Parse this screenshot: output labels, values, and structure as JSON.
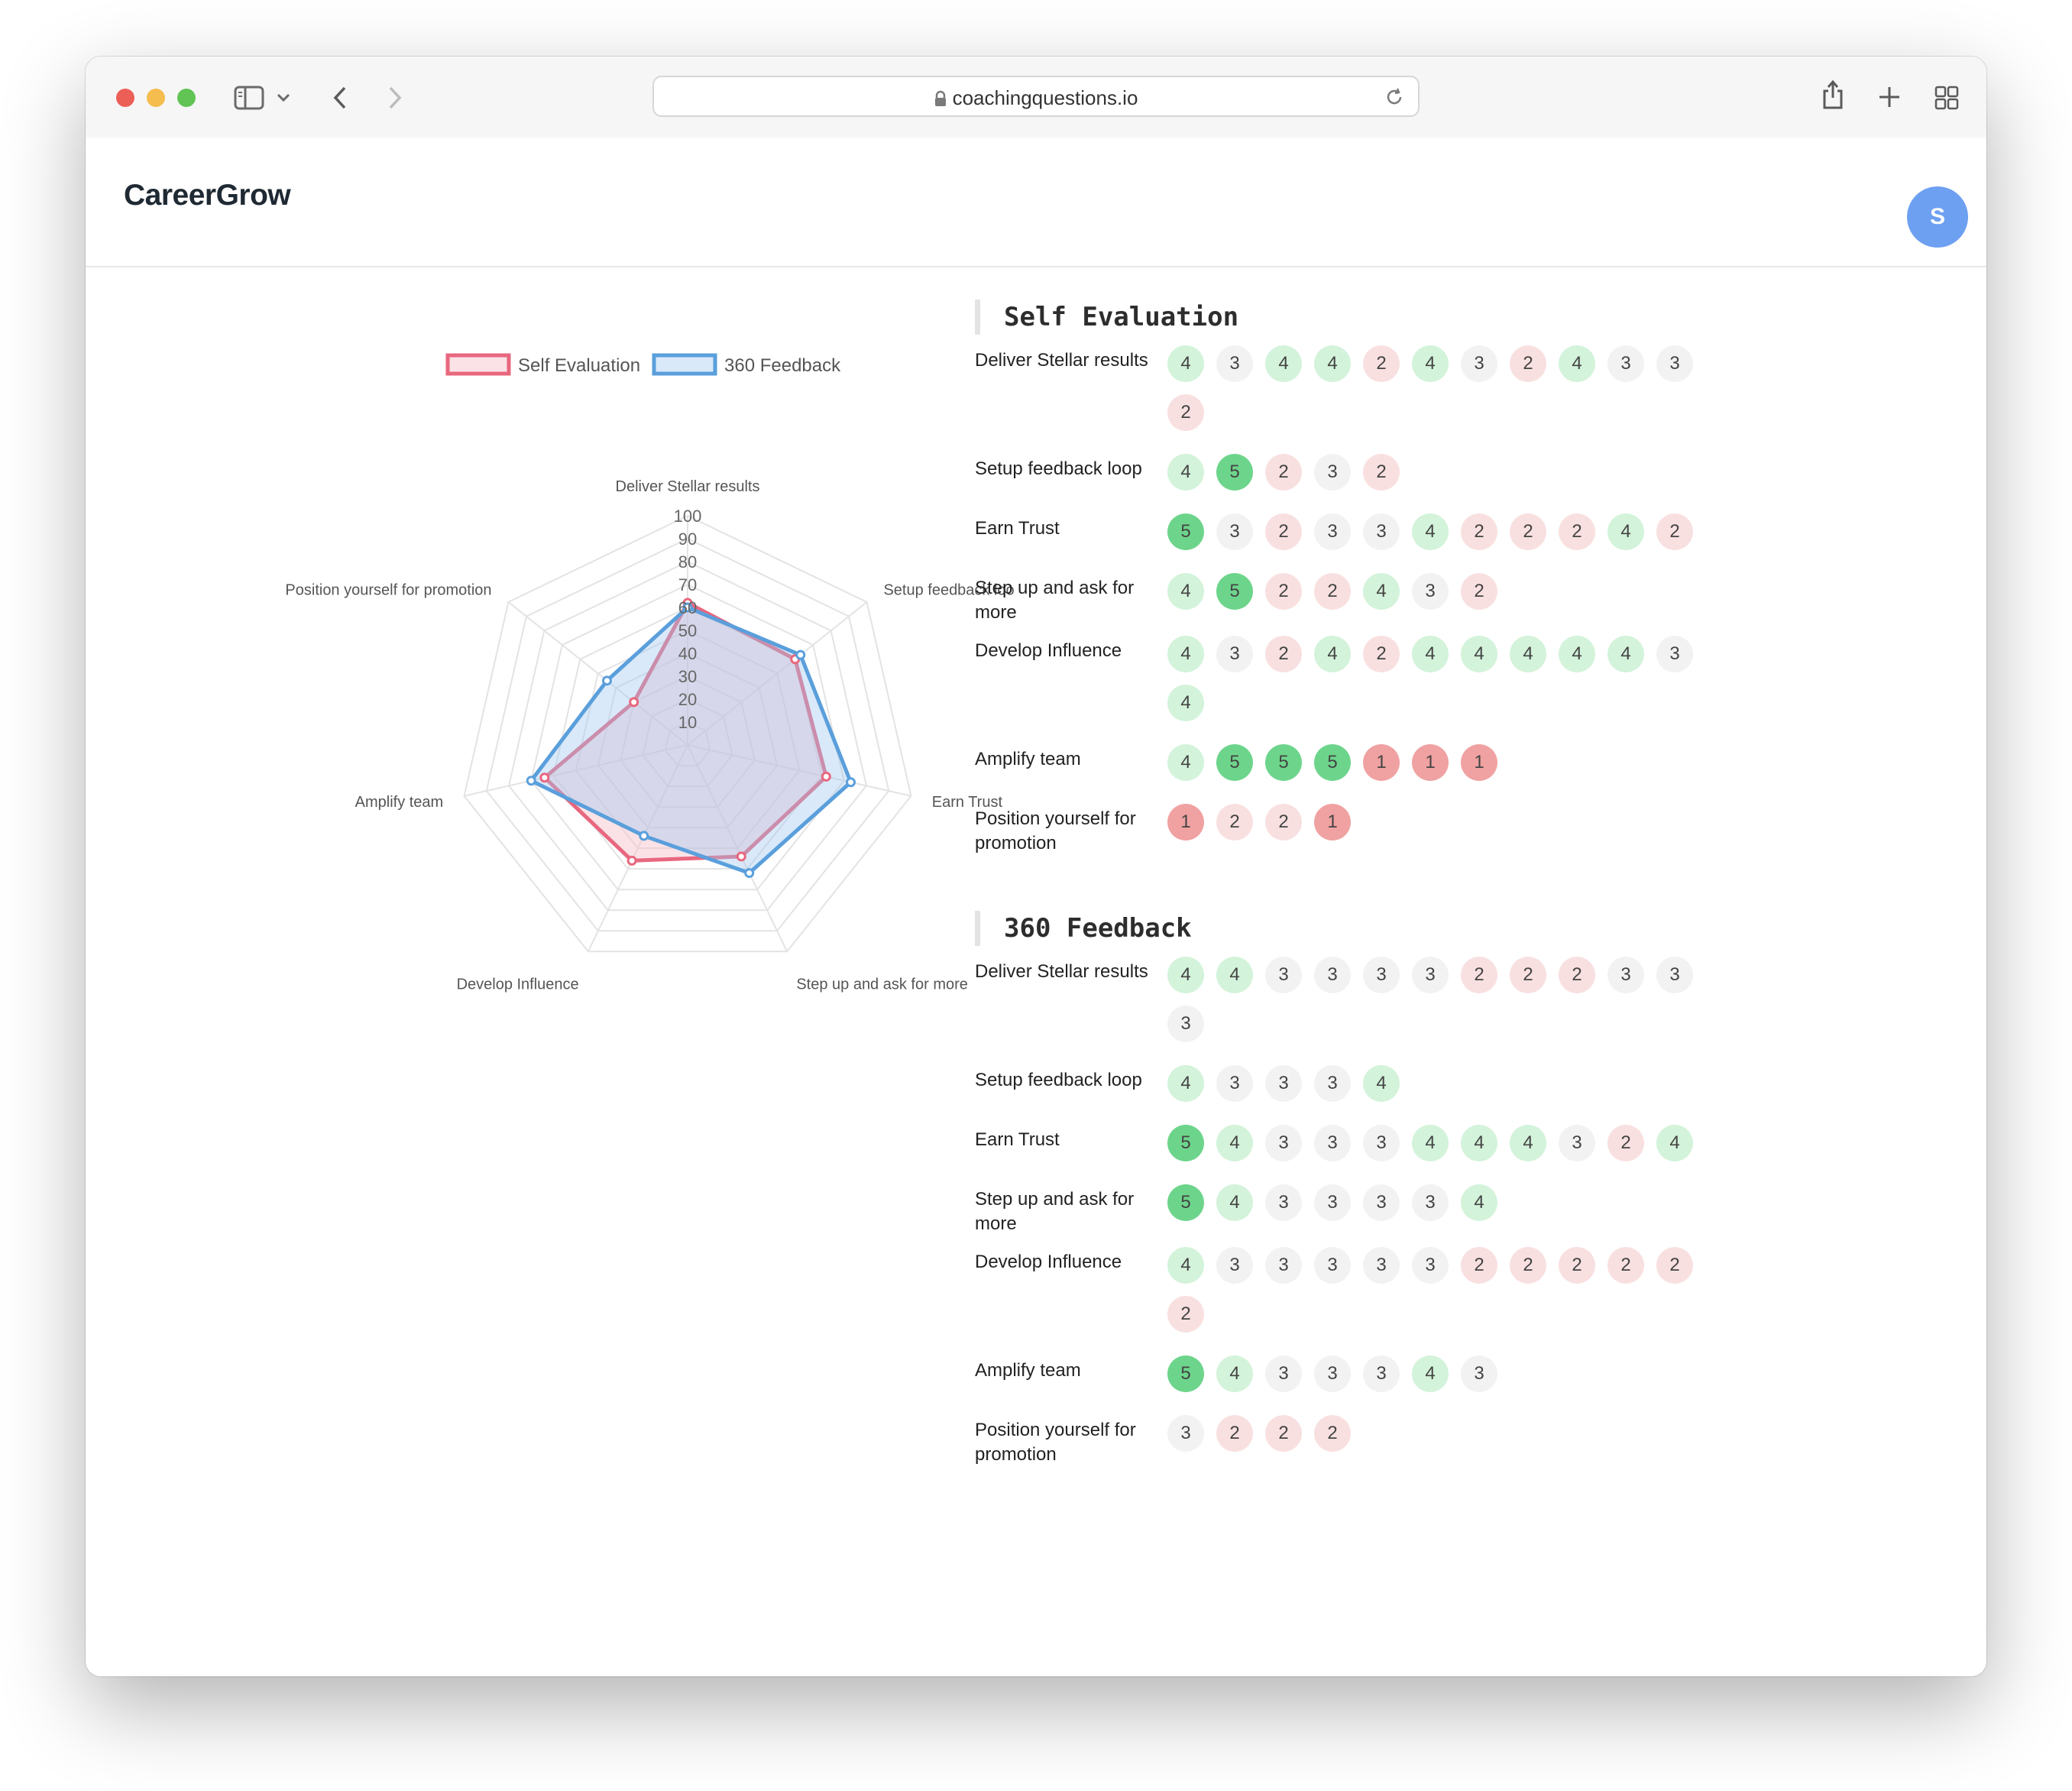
{
  "browser": {
    "url": "coachingquestions.io",
    "traffic_lights": {
      "close": "#ec5f57",
      "minimize": "#f4bd4e",
      "zoom": "#61c454"
    }
  },
  "header": {
    "brand": "CareerGrow",
    "avatar_initial": "S"
  },
  "chart_data": {
    "type": "radar",
    "categories": [
      "Deliver Stellar results",
      "Setup feedback loo",
      "Earn Trust",
      "Step up and ask for more",
      "Develop Influence",
      "Amplify team",
      "Position yourself for promotion"
    ],
    "r_ticks": [
      "10",
      "20",
      "30",
      "40",
      "50",
      "60",
      "70",
      "80",
      "90",
      "100"
    ],
    "rlim": [
      0,
      100
    ],
    "legend_position": "top",
    "series": [
      {
        "name": "Self Evaluation",
        "values": [
          62,
          60,
          62,
          54,
          56,
          64,
          30
        ],
        "color": "#e8677f",
        "fill": "rgba(245,190,200,0.45)"
      },
      {
        "name": "360 Feedback",
        "values": [
          60,
          63,
          73,
          62,
          44,
          70,
          45
        ],
        "color": "#5a9fdc",
        "fill": "rgba(160,200,240,0.40)"
      }
    ]
  },
  "sections": [
    {
      "title": "Self Evaluation",
      "rows": [
        {
          "label": "Deliver Stellar results",
          "scores": [
            "4",
            "3",
            "4",
            "4",
            "2",
            "4",
            "3",
            "2",
            "4",
            "3",
            "3",
            "2"
          ]
        },
        {
          "label": "Setup feedback loop",
          "scores": [
            "4",
            "5",
            "2",
            "3",
            "2"
          ]
        },
        {
          "label": "Earn Trust",
          "scores": [
            "5",
            "3",
            "2",
            "3",
            "3",
            "4",
            "2",
            "2",
            "2",
            "4",
            "2"
          ]
        },
        {
          "label": "Step up and ask for more",
          "scores": [
            "4",
            "5",
            "2",
            "2",
            "4",
            "3",
            "2"
          ]
        },
        {
          "label": "Develop Influence",
          "scores": [
            "4",
            "3",
            "2",
            "4",
            "2",
            "4",
            "4",
            "4",
            "4",
            "4",
            "3",
            "4"
          ]
        },
        {
          "label": "Amplify team",
          "scores": [
            "4",
            "5",
            "5",
            "5",
            "1",
            "1",
            "1"
          ]
        },
        {
          "label": "Position yourself for promotion",
          "scores": [
            "1",
            "2",
            "2",
            "1"
          ]
        }
      ]
    },
    {
      "title": "360 Feedback",
      "rows": [
        {
          "label": "Deliver Stellar results",
          "scores": [
            "4",
            "4",
            "3",
            "3",
            "3",
            "3",
            "2",
            "2",
            "2",
            "3",
            "3",
            "3"
          ]
        },
        {
          "label": "Setup feedback loop",
          "scores": [
            "4",
            "3",
            "3",
            "3",
            "4"
          ]
        },
        {
          "label": "Earn Trust",
          "scores": [
            "5",
            "4",
            "3",
            "3",
            "3",
            "4",
            "4",
            "4",
            "3",
            "2",
            "4"
          ]
        },
        {
          "label": "Step up and ask for more",
          "scores": [
            "5",
            "4",
            "3",
            "3",
            "3",
            "3",
            "4"
          ]
        },
        {
          "label": "Develop Influence",
          "scores": [
            "4",
            "3",
            "3",
            "3",
            "3",
            "3",
            "2",
            "2",
            "2",
            "2",
            "2",
            "2"
          ]
        },
        {
          "label": "Amplify team",
          "scores": [
            "5",
            "4",
            "3",
            "3",
            "3",
            "4",
            "3"
          ]
        },
        {
          "label": "Position yourself for promotion",
          "scores": [
            "3",
            "2",
            "2",
            "2"
          ]
        }
      ]
    }
  ]
}
